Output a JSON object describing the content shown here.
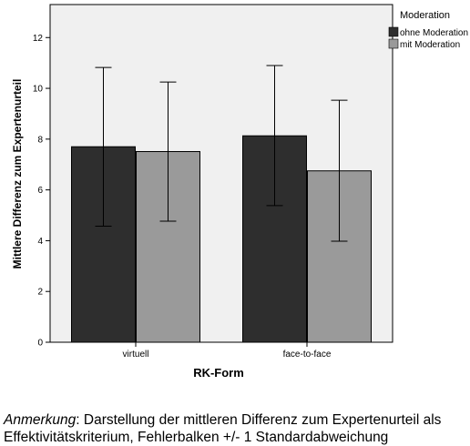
{
  "chart_data": {
    "type": "bar",
    "xlabel": "RK-Form",
    "ylabel": "Mittlere Differenz zum Expertenurteil",
    "categories": [
      "virtuell",
      "face-to-face"
    ],
    "ylim": [
      0,
      13.3
    ],
    "yticks": [
      0,
      2,
      4,
      6,
      8,
      10,
      12
    ],
    "legend_title": "Moderation",
    "legend_position": "top-right",
    "grid": false,
    "series": [
      {
        "name": "ohne Moderation",
        "color": "#2e2e2e",
        "values": [
          7.7,
          8.13
        ],
        "err_low": [
          4.57,
          5.38
        ],
        "err_high": [
          10.82,
          10.9
        ]
      },
      {
        "name": "mit Moderation",
        "color": "#9a9a9a",
        "values": [
          7.51,
          6.75
        ],
        "err_low": [
          4.77,
          3.98
        ],
        "err_high": [
          10.25,
          9.53
        ]
      }
    ]
  },
  "note": {
    "label": "Anmerkung",
    "text": ": Darstellung der mittleren Differenz zum Expertenurteil als Effektivitätskriterium, Fehlerbalken +/- 1 Standardabweichung"
  }
}
